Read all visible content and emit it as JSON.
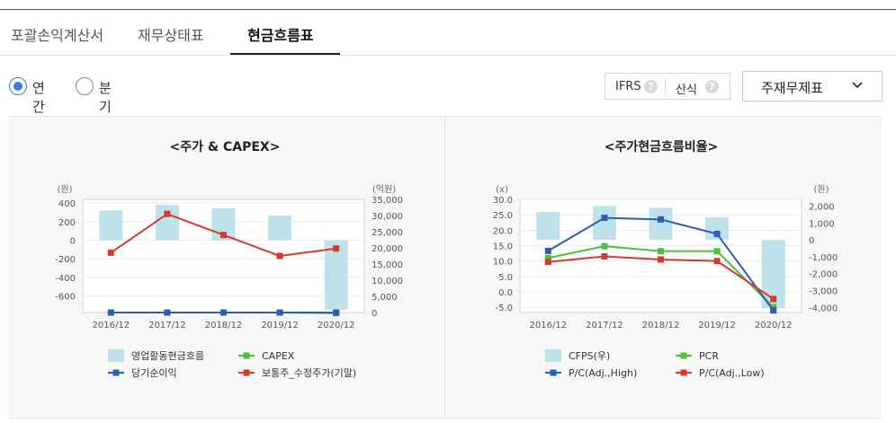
{
  "tabs": [
    {
      "label": "포괄손익계산서",
      "active": false
    },
    {
      "label": "재무상태표",
      "active": false
    },
    {
      "label": "현금흐름표",
      "active": true
    }
  ],
  "period": {
    "options": [
      {
        "label": "연간",
        "checked": true
      },
      {
        "label": "분기",
        "checked": false
      }
    ]
  },
  "options": {
    "ifrs_label": "IFRS",
    "method_label": "산식",
    "help_glyph": "?"
  },
  "statement_select": {
    "value": "주재무제표"
  },
  "colors": {
    "bar": "#bfe1e9",
    "blue": "#2b5db8",
    "red": "#d63a2b",
    "green": "#4cbf3c"
  },
  "chart_data": [
    {
      "type": "bar",
      "title": "<주가 & CAPEX>",
      "y_left_unit": "(원)",
      "y_right_unit": "(억원)",
      "categories": [
        "2016/12",
        "2017/12",
        "2018/12",
        "2019/12",
        "2020/12"
      ],
      "y_left_ticks": [
        "400",
        "200",
        "0",
        "-200",
        "-400",
        "-600"
      ],
      "y_right_ticks": [
        "35,000",
        "30,000",
        "25,000",
        "20,000",
        "15,000",
        "10,000",
        "5,000",
        "0"
      ],
      "ylim_left": [
        -780,
        440
      ],
      "ylim_right": [
        0,
        35000
      ],
      "series": [
        {
          "name": "영업활동현금흐름",
          "kind": "bar",
          "axis": "left",
          "color_key": "bar",
          "values": [
            320,
            380,
            345,
            265,
            -750
          ]
        },
        {
          "name": "CAPEX",
          "kind": "line",
          "axis": "right",
          "color_key": "green",
          "values": [
            0,
            0,
            0,
            0,
            -200
          ]
        },
        {
          "name": "당기순이익",
          "kind": "line",
          "axis": "right",
          "color_key": "blue",
          "values": [
            0,
            0,
            0,
            0,
            0
          ]
        },
        {
          "name": "보통주_수정주가(기말)",
          "kind": "line",
          "axis": "right",
          "color_key": "red",
          "values": [
            18500,
            30500,
            24000,
            17500,
            19800
          ]
        }
      ],
      "legend": [
        {
          "label": "영업활동현금흐름",
          "color_key": "bar",
          "kind": "bar"
        },
        {
          "label": "CAPEX",
          "color_key": "green",
          "kind": "line"
        },
        {
          "label": "당기순이익",
          "color_key": "blue",
          "kind": "line"
        },
        {
          "label": "보통주_수정주가(기말)",
          "color_key": "red",
          "kind": "line"
        }
      ]
    },
    {
      "type": "bar",
      "title": "<주가현금흐름비율>",
      "y_left_unit": "(x)",
      "y_right_unit": "(원)",
      "categories": [
        "2016/12",
        "2017/12",
        "2018/12",
        "2019/12",
        "2020/12"
      ],
      "y_left_ticks": [
        "30.0",
        "25.0",
        "20.0",
        "15.0",
        "10.0",
        "5.0",
        "0.0",
        "-5.0"
      ],
      "y_right_ticks": [
        "2,000",
        "1,000",
        "0",
        "-1,000",
        "-2,000",
        "-3,000",
        "-4,000"
      ],
      "ylim_left": [
        -6.7,
        30
      ],
      "ylim_right": [
        -4300,
        2400
      ],
      "series": [
        {
          "name": "CFPS(우)",
          "kind": "bar",
          "axis": "right",
          "color_key": "bar",
          "values": [
            1650,
            2000,
            1900,
            1350,
            -4050
          ]
        },
        {
          "name": "PCR",
          "kind": "line",
          "axis": "left",
          "color_key": "green",
          "values": [
            11.0,
            14.8,
            13.2,
            13.2,
            -5.0
          ]
        },
        {
          "name": "P/C(Adj.,High)",
          "kind": "line",
          "axis": "left",
          "color_key": "blue",
          "values": [
            13.3,
            24.0,
            23.5,
            18.8,
            -6.0
          ]
        },
        {
          "name": "P/C(Adj.,Low)",
          "kind": "line",
          "axis": "left",
          "color_key": "red",
          "values": [
            9.7,
            11.5,
            10.5,
            10.0,
            -2.3
          ]
        }
      ],
      "legend": [
        {
          "label": "CFPS(우)",
          "color_key": "bar",
          "kind": "bar"
        },
        {
          "label": "PCR",
          "color_key": "green",
          "kind": "line"
        },
        {
          "label": "P/C(Adj.,High)",
          "color_key": "blue",
          "kind": "line"
        },
        {
          "label": "P/C(Adj.,Low)",
          "color_key": "red",
          "kind": "line"
        }
      ]
    }
  ]
}
